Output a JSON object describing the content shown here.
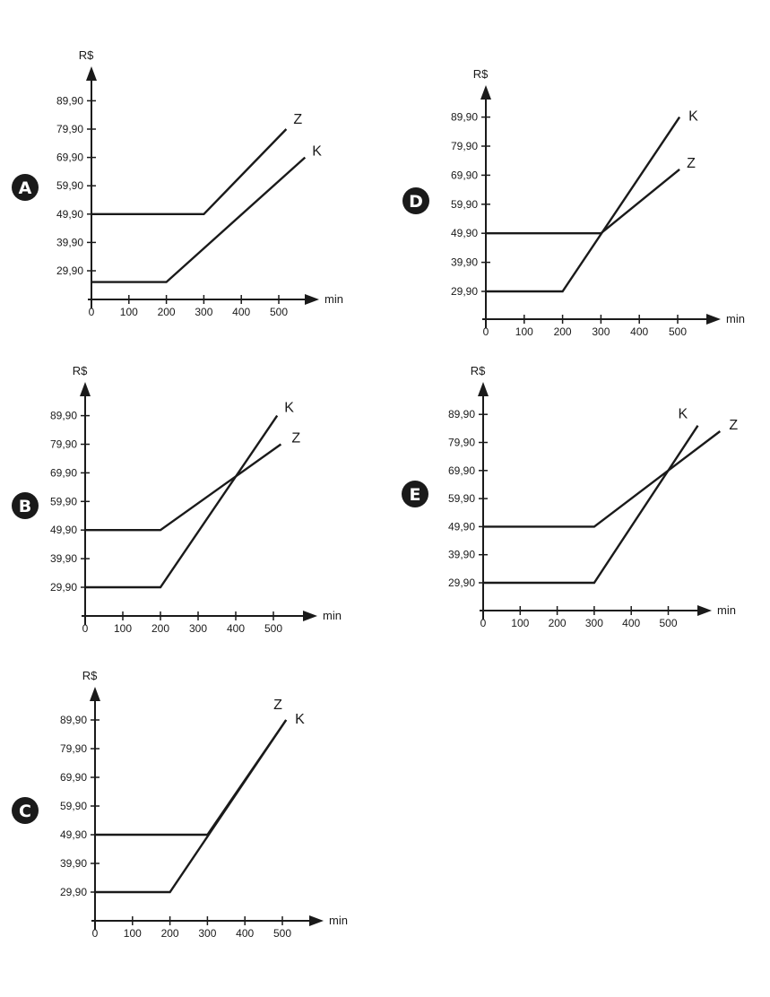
{
  "chart_data": [
    {
      "type": "line",
      "option": "A",
      "xlabel": "min",
      "ylabel": "R$",
      "x_ticks": [
        "0",
        "100",
        "200",
        "300",
        "400",
        "500"
      ],
      "y_ticks": [
        "29,90",
        "39,90",
        "49,90",
        "59,90",
        "69,90",
        "79,90",
        "89,90"
      ],
      "series": [
        {
          "name": "Z",
          "x": [
            0,
            300,
            520
          ],
          "y": [
            49.9,
            49.9,
            79.9
          ]
        },
        {
          "name": "K",
          "x": [
            0,
            200,
            570
          ],
          "y": [
            25.9,
            25.9,
            69.9
          ]
        }
      ]
    },
    {
      "type": "line",
      "option": "B",
      "xlabel": "min",
      "ylabel": "R$",
      "x_ticks": [
        "0",
        "100",
        "200",
        "300",
        "400",
        "500"
      ],
      "y_ticks": [
        "29,90",
        "39,90",
        "49,90",
        "59,90",
        "69,90",
        "79,90",
        "89,90"
      ],
      "series": [
        {
          "name": "K",
          "x": [
            0,
            200,
            510
          ],
          "y": [
            29.9,
            29.9,
            89.9
          ]
        },
        {
          "name": "Z",
          "x": [
            0,
            200,
            520
          ],
          "y": [
            49.9,
            49.9,
            79.9
          ]
        }
      ]
    },
    {
      "type": "line",
      "option": "C",
      "xlabel": "min",
      "ylabel": "R$",
      "x_ticks": [
        "0",
        "100",
        "200",
        "300",
        "400",
        "500"
      ],
      "y_ticks": [
        "29,90",
        "39,90",
        "49,90",
        "59,90",
        "69,90",
        "79,90",
        "89,90"
      ],
      "series": [
        {
          "name": "Z",
          "x": [
            0,
            300,
            510
          ],
          "y": [
            49.9,
            49.9,
            89.9
          ]
        },
        {
          "name": "K",
          "x": [
            0,
            200,
            510
          ],
          "y": [
            29.9,
            29.9,
            89.9
          ]
        }
      ]
    },
    {
      "type": "line",
      "option": "D",
      "xlabel": "min",
      "ylabel": "R$",
      "x_ticks": [
        "0",
        "100",
        "200",
        "300",
        "400",
        "500"
      ],
      "y_ticks": [
        "29,90",
        "39,90",
        "49,90",
        "59,90",
        "69,90",
        "79,90",
        "89,90"
      ],
      "series": [
        {
          "name": "K",
          "x": [
            0,
            200,
            505
          ],
          "y": [
            29.9,
            29.9,
            89.9
          ]
        },
        {
          "name": "Z",
          "x": [
            0,
            300,
            505
          ],
          "y": [
            49.9,
            49.9,
            71.9
          ]
        }
      ]
    },
    {
      "type": "line",
      "option": "E",
      "xlabel": "min",
      "ylabel": "R$",
      "x_ticks": [
        "0",
        "100",
        "200",
        "300",
        "400",
        "500"
      ],
      "y_ticks": [
        "29,90",
        "39,90",
        "49,90",
        "59,90",
        "69,90",
        "79,90",
        "89,90"
      ],
      "series": [
        {
          "name": "K",
          "x": [
            0,
            300,
            580
          ],
          "y": [
            29.9,
            29.9,
            85.9
          ]
        },
        {
          "name": "Z",
          "x": [
            0,
            300,
            640
          ],
          "y": [
            49.9,
            49.9,
            83.9
          ]
        }
      ]
    }
  ]
}
